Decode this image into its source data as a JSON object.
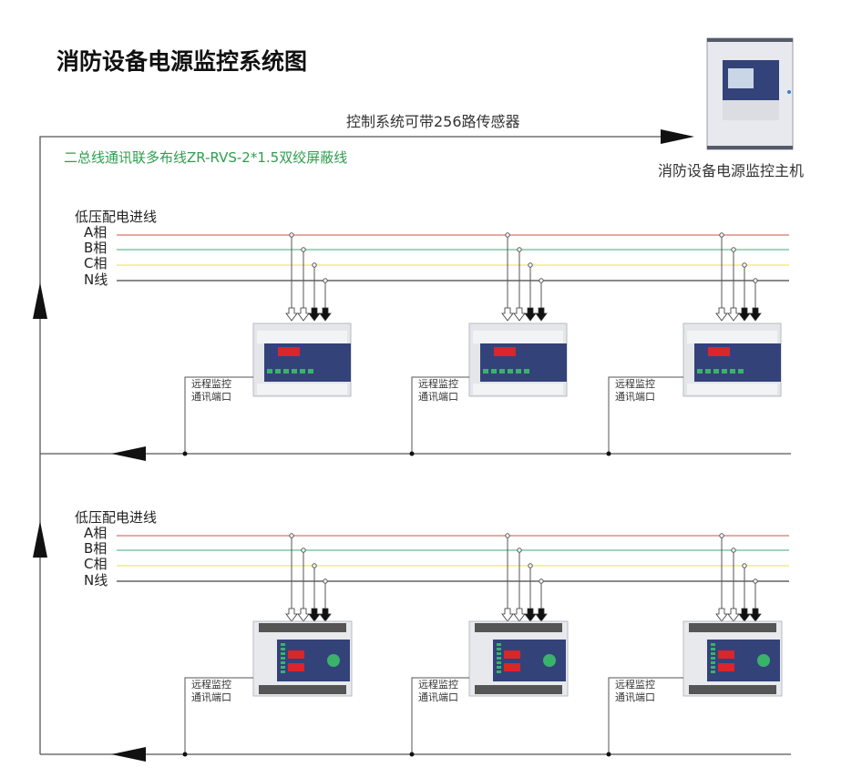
{
  "title": "消防设备电源监控系统图",
  "host": {
    "label": "消防设备电源监控主机"
  },
  "top_line_label": "控制系统可带256路传感器",
  "bus_label": "二总线通讯联多布线ZR-RVS-2*1.5双绞屏蔽线",
  "sections": [
    {
      "title": "低压配电进线",
      "phases": [
        "A相",
        "B相",
        "C相",
        "N线"
      ],
      "devices": [
        {
          "port_label_1": "远程监控",
          "port_label_2": "通讯端口"
        },
        {
          "port_label_1": "远程监控",
          "port_label_2": "通讯端口"
        },
        {
          "port_label_1": "远程监控",
          "port_label_2": "通讯端口"
        }
      ]
    },
    {
      "title": "低压配电进线",
      "phases": [
        "A相",
        "B相",
        "C相",
        "N线"
      ],
      "devices": [
        {
          "port_label_1": "远程监控",
          "port_label_2": "通讯端口"
        },
        {
          "port_label_1": "远程监控",
          "port_label_2": "通讯端口"
        },
        {
          "port_label_1": "远程监控",
          "port_label_2": "通讯端口"
        }
      ]
    }
  ],
  "colors": {
    "phase_a": "#d9756a",
    "phase_b": "#5fbf94",
    "phase_c": "#f2e36a",
    "phase_n": "#444444",
    "bus_label": "#2e9e4e",
    "panel": "#34427a",
    "display": "#d8262b",
    "key": "#39b36a"
  }
}
